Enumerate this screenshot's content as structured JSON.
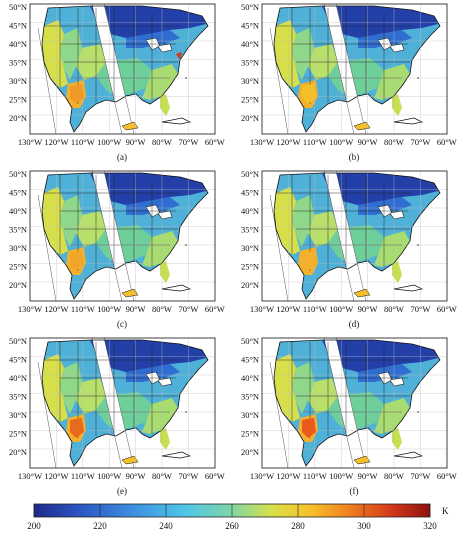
{
  "panels": [
    {
      "caption": "(a)",
      "variant": 0
    },
    {
      "caption": "(b)",
      "variant": 1
    },
    {
      "caption": "(c)",
      "variant": 2
    },
    {
      "caption": "(d)",
      "variant": 3
    },
    {
      "caption": "(e)",
      "variant": 4
    },
    {
      "caption": "(f)",
      "variant": 5
    }
  ],
  "lat_labels": [
    "50°N",
    "45°N",
    "40°N",
    "35°N",
    "30°N",
    "25°N",
    "20°N"
  ],
  "lon_labels": [
    "130°W",
    "120°W",
    "110°W",
    "100°W",
    "90°W",
    "80°W",
    "70°W",
    "60°W"
  ],
  "colorbar": {
    "ticks": [
      "200",
      "220",
      "240",
      "260",
      "280",
      "300",
      "320"
    ],
    "unit": "K",
    "colors": [
      "#1d2a8a",
      "#2b57c4",
      "#3d8fe0",
      "#4fc5e8",
      "#7fd6a5",
      "#d7e04a",
      "#f7c02a",
      "#ef7d1e",
      "#d43a1a",
      "#8f1010"
    ]
  }
}
